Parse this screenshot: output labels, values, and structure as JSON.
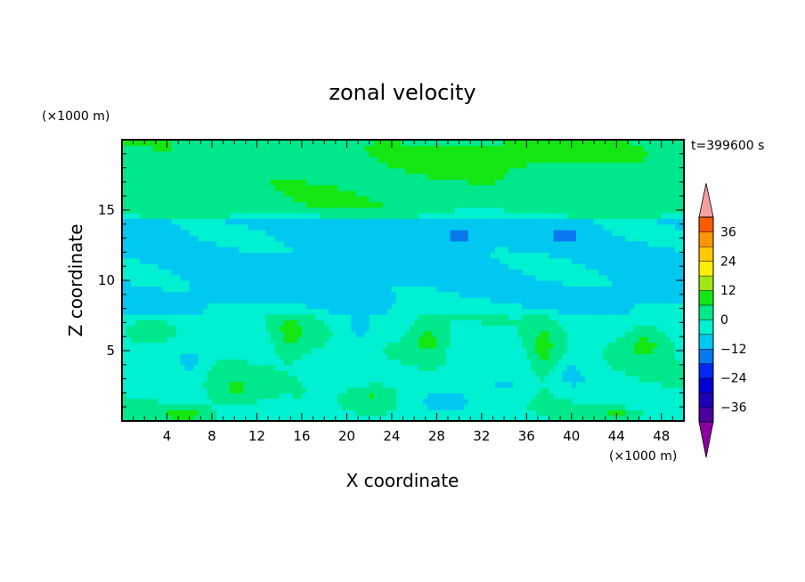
{
  "chart_data": {
    "type": "heatmap",
    "title": "zonal velocity",
    "xlabel": "X coordinate",
    "ylabel": "Z coordinate",
    "x_unit": "(×1000 m)",
    "y_unit": "(×1000 m)",
    "time_label": "t=399600 s",
    "xlim": [
      0,
      50
    ],
    "ylim": [
      0,
      20
    ],
    "x_ticks": [
      4,
      8,
      12,
      16,
      20,
      24,
      28,
      32,
      36,
      40,
      44,
      48
    ],
    "y_ticks": [
      5,
      10,
      15
    ],
    "colorbar": {
      "levels": [
        -42,
        -36,
        -30,
        -24,
        -18,
        -12,
        -6,
        0,
        6,
        12,
        18,
        24,
        30,
        36,
        42
      ],
      "labels": [
        36,
        24,
        12,
        0,
        -12,
        -24,
        -36
      ],
      "colors": [
        "#78008c",
        "#4c00a0",
        "#1e00b4",
        "#0000d2",
        "#0028f0",
        "#0a78f0",
        "#00c8f0",
        "#00f0d2",
        "#00e88c",
        "#14e614",
        "#a0e614",
        "#ffee00",
        "#ffc800",
        "#ff9600",
        "#ff5a00",
        "#ff1400",
        "#f5a0a0"
      ],
      "under_color": "#8c00a0",
      "over_color": "#f5a0a0"
    },
    "features": [
      {
        "x": 30,
        "z": 13.2,
        "sx": 1.2,
        "sy": 0.4,
        "v": -10
      },
      {
        "x": 39.5,
        "z": 13.2,
        "sx": 1.5,
        "sy": 0.3,
        "v": -9
      },
      {
        "x": 15,
        "z": 6.3,
        "sx": 1.5,
        "sy": 1.7,
        "v": 9
      },
      {
        "x": 27.3,
        "z": 5.8,
        "sx": 1.6,
        "sy": 1.3,
        "v": 10
      },
      {
        "x": 37.5,
        "z": 5.0,
        "sx": 1.5,
        "sy": 2.1,
        "v": 10
      },
      {
        "x": 46.5,
        "z": 5.5,
        "sx": 2.2,
        "sy": 1.2,
        "v": 10
      },
      {
        "x": 3,
        "z": 6.6,
        "sx": 2.0,
        "sy": 0.8,
        "v": 7
      },
      {
        "x": 22.5,
        "z": 1.8,
        "sx": 2.2,
        "sy": 0.9,
        "v": 9
      },
      {
        "x": 10,
        "z": 2.2,
        "sx": 2.2,
        "sy": 1.2,
        "v": 7
      },
      {
        "x": 5.5,
        "z": 0.5,
        "sx": 2.0,
        "sy": 0.5,
        "v": 10
      },
      {
        "x": 44,
        "z": 0.5,
        "sx": 1.8,
        "sy": 0.4,
        "v": 8
      },
      {
        "x": 6,
        "z": 4.3,
        "sx": 1.5,
        "sy": 1.0,
        "v": -8
      },
      {
        "x": 21,
        "z": 6.2,
        "sx": 1.7,
        "sy": 2.0,
        "v": -7
      },
      {
        "x": 34,
        "z": 2.5,
        "sx": 2.5,
        "sy": 1.0,
        "v": -6
      },
      {
        "x": 29,
        "z": 1.4,
        "sx": 2.0,
        "sy": 0.7,
        "v": -7
      },
      {
        "x": 40,
        "z": 3.2,
        "sx": 1.7,
        "sy": 1.2,
        "v": -5
      },
      {
        "x": 33,
        "z": 18.8,
        "sx": 7.0,
        "sy": 0.9,
        "v": 5
      },
      {
        "x": 42,
        "z": 19.3,
        "sx": 5.0,
        "sy": 0.8,
        "v": 4
      }
    ]
  }
}
